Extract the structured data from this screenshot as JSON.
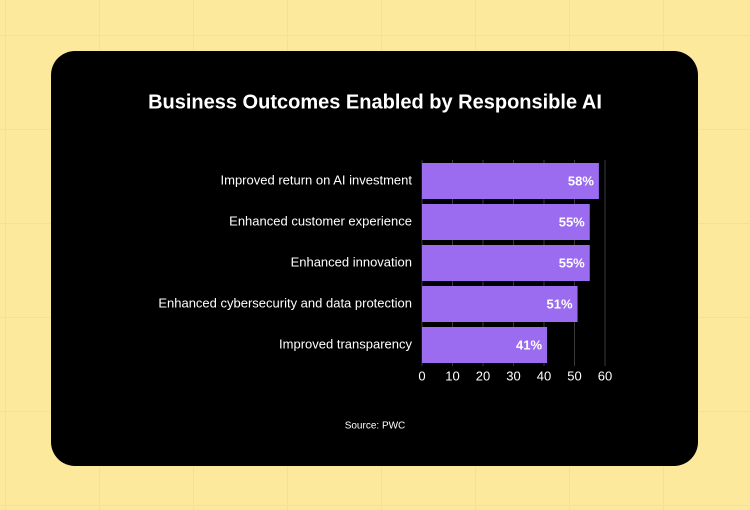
{
  "chart_data": {
    "type": "bar",
    "title": "Business Outcomes Enabled by Responsible AI",
    "categories": [
      "Improved return on AI investment",
      "Enhanced customer experience",
      "Enhanced innovation",
      "Enhanced cybersecurity and data protection",
      "Improved transparency"
    ],
    "values": [
      58,
      55,
      55,
      51,
      41
    ],
    "value_labels": [
      "58%",
      "55%",
      "55%",
      "51%",
      "41%"
    ],
    "color": "#9b6cf0",
    "xlim": [
      0,
      60
    ],
    "xticks": [
      0,
      10,
      20,
      30,
      40,
      50,
      60
    ],
    "grid": true,
    "source": "Source: PWC"
  }
}
